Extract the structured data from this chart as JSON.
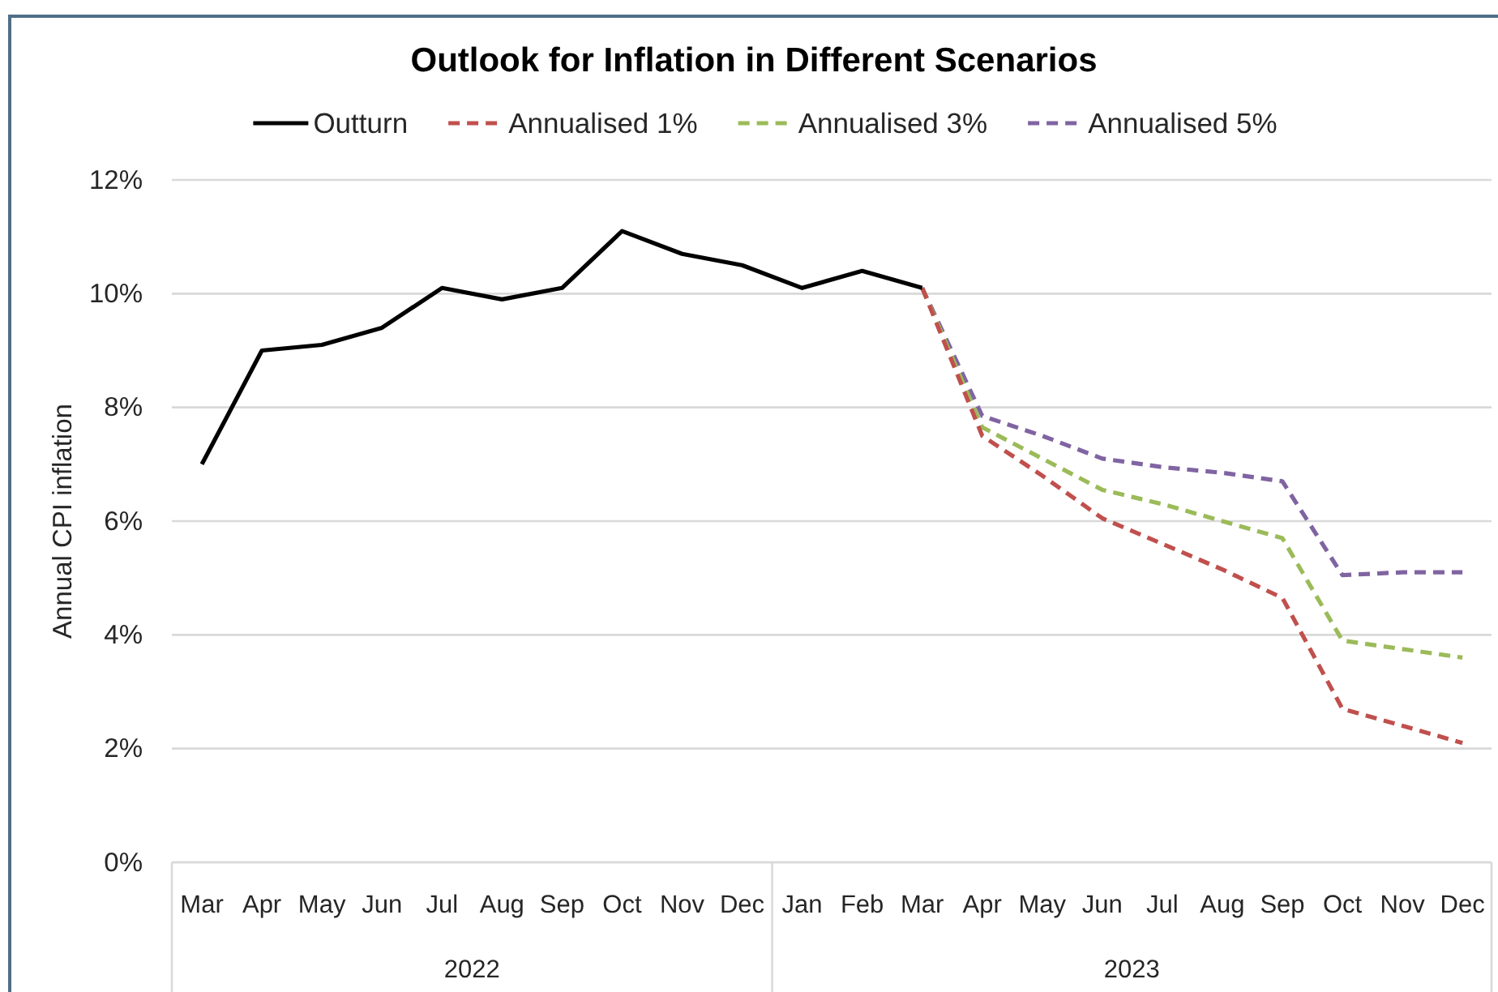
{
  "chart_data": {
    "type": "line",
    "title": "Outlook for Inflation in Different Scenarios",
    "ylabel": "Annual CPI inflation",
    "xlim": [
      "2022-02-15",
      "2023-12-16"
    ],
    "xticks": [
      {
        "value": "2022-03",
        "label": "Mar"
      },
      {
        "value": "2022-04",
        "label": "Apr"
      },
      {
        "value": "2022-05",
        "label": "May"
      },
      {
        "value": "2022-06",
        "label": "Jun"
      },
      {
        "value": "2022-07",
        "label": "Jul"
      },
      {
        "value": "2022-08",
        "label": "Aug"
      },
      {
        "value": "2022-09",
        "label": "Sep"
      },
      {
        "value": "2022-10",
        "label": "Oct"
      },
      {
        "value": "2022-11",
        "label": "Nov"
      },
      {
        "value": "2022-12",
        "label": "Dec"
      },
      {
        "value": "2023-01",
        "label": "Jan"
      },
      {
        "value": "2023-02",
        "label": "Feb"
      },
      {
        "value": "2023-03",
        "label": "Mar"
      },
      {
        "value": "2023-04",
        "label": "Apr"
      },
      {
        "value": "2023-05",
        "label": "May"
      },
      {
        "value": "2023-06",
        "label": "Jun"
      },
      {
        "value": "2023-07",
        "label": "Jul"
      },
      {
        "value": "2023-08",
        "label": "Aug"
      },
      {
        "value": "2023-09",
        "label": "Sep"
      },
      {
        "value": "2023-10",
        "label": "Oct"
      },
      {
        "value": "2023-11",
        "label": "Nov"
      },
      {
        "value": "2023-12",
        "label": "Dec"
      }
    ],
    "ylim": [
      0,
      12
    ],
    "yticks": [
      {
        "value": 0,
        "label": "0%"
      },
      {
        "value": 2,
        "label": "2%"
      },
      {
        "value": 4,
        "label": "4%"
      },
      {
        "value": 6,
        "label": "6%"
      },
      {
        "value": 8,
        "label": "8%"
      },
      {
        "value": 10,
        "label": "10%"
      },
      {
        "value": 12,
        "label": "12%"
      }
    ],
    "grid": "y",
    "legend": "top",
    "annotations": [
      "2022",
      "2023"
    ],
    "series": [
      {
        "name": "Outturn",
        "color": "#000000",
        "line_style": "solid",
        "x": [
          "2022-03",
          "2022-04",
          "2022-05",
          "2022-06",
          "2022-07",
          "2022-08",
          "2022-09",
          "2022-10",
          "2022-11",
          "2022-12",
          "2023-01",
          "2023-02",
          "2023-03"
        ],
        "values": [
          7.0,
          9.0,
          9.1,
          9.4,
          10.1,
          9.9,
          10.1,
          11.1,
          10.7,
          10.5,
          10.1,
          10.4,
          10.1
        ]
      },
      {
        "name": "Annualised 1%",
        "color": "#c0504d",
        "line_style": "dashed",
        "x": [
          "2023-03",
          "2023-04",
          "2023-05",
          "2023-06",
          "2023-07",
          "2023-08",
          "2023-09",
          "2023-10",
          "2023-11",
          "2023-12"
        ],
        "values": [
          10.1,
          7.5,
          6.8,
          6.05,
          5.6,
          5.15,
          4.65,
          2.7,
          2.4,
          2.1
        ]
      },
      {
        "name": "Annualised 3%",
        "color": "#9bbb59",
        "line_style": "dashed",
        "x": [
          "2023-03",
          "2023-04",
          "2023-05",
          "2023-06",
          "2023-07",
          "2023-08",
          "2023-09",
          "2023-10",
          "2023-11",
          "2023-12"
        ],
        "values": [
          10.1,
          7.65,
          7.1,
          6.55,
          6.3,
          6.0,
          5.7,
          3.9,
          3.75,
          3.6
        ]
      },
      {
        "name": "Annualised 5%",
        "color": "#8064a2",
        "line_style": "dashed",
        "x": [
          "2023-03",
          "2023-04",
          "2023-05",
          "2023-06",
          "2023-07",
          "2023-08",
          "2023-09",
          "2023-10",
          "2023-11",
          "2023-12"
        ],
        "values": [
          10.1,
          7.85,
          7.5,
          7.1,
          6.95,
          6.85,
          6.7,
          5.05,
          5.1,
          5.1
        ]
      }
    ]
  }
}
